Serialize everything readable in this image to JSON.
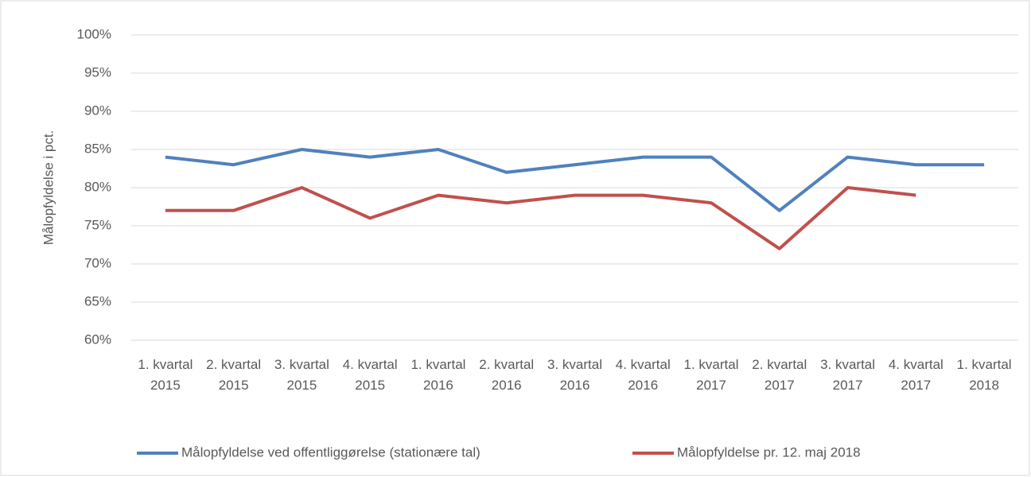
{
  "chart_data": {
    "type": "line",
    "y_label": "Målopfyldelse i pct.",
    "categories": [
      "1. kvartal 2015",
      "2. kvartal 2015",
      "3. kvartal 2015",
      "4. kvartal 2015",
      "1. kvartal 2016",
      "2. kvartal 2016",
      "3. kvartal 2016",
      "4. kvartal 2016",
      "1. kvartal 2017",
      "2. kvartal 2017",
      "3. kvartal 2017",
      "4. kvartal 2017",
      "1. kvartal 2018"
    ],
    "series": [
      {
        "name": "Målopfyldelse ved offentliggørelse (stationære tal)",
        "color": "#4f81bd",
        "values": [
          84,
          83,
          85,
          84,
          85,
          82,
          83,
          84,
          84,
          77,
          84,
          83,
          83
        ]
      },
      {
        "name": "Målopfyldelse pr. 12. maj 2018",
        "color": "#c0504d",
        "values": [
          77,
          77,
          80,
          76,
          79,
          78,
          79,
          79,
          78,
          72,
          80,
          79,
          null
        ]
      }
    ],
    "ylim": [
      60,
      100
    ],
    "yticks": [
      {
        "value": 60,
        "label": "60%"
      },
      {
        "value": 65,
        "label": "65%"
      },
      {
        "value": 70,
        "label": "70%"
      },
      {
        "value": 75,
        "label": "75%"
      },
      {
        "value": 80,
        "label": "80%"
      },
      {
        "value": 85,
        "label": "85%"
      },
      {
        "value": 90,
        "label": "90%"
      },
      {
        "value": 95,
        "label": "95%"
      },
      {
        "value": 100,
        "label": "100%"
      }
    ],
    "grid": true,
    "legend": "bottom"
  }
}
